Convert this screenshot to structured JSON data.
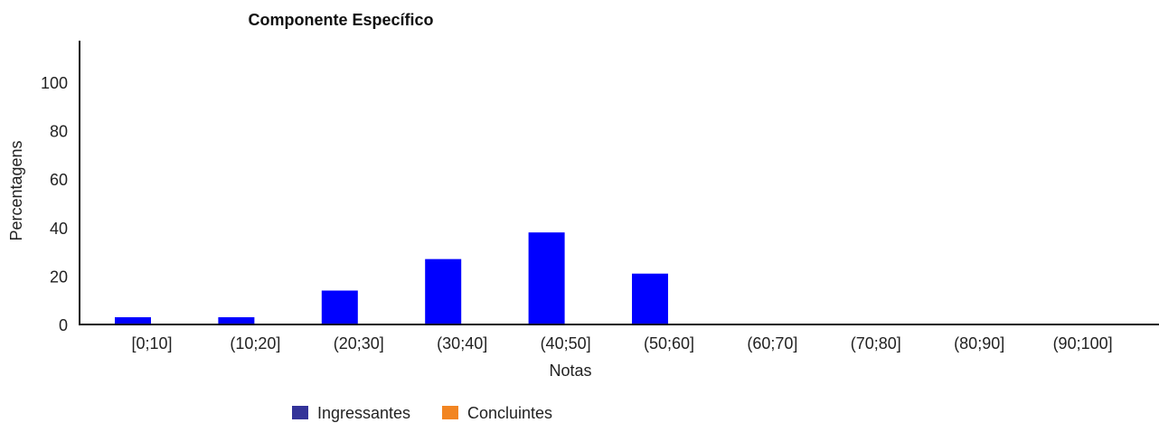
{
  "chart_data": {
    "type": "bar",
    "title": "Componente Específico",
    "xlabel": "Notas",
    "ylabel": "Percentagens",
    "categories": [
      "[0;10]",
      "(10;20]",
      "(20;30]",
      "(30;40]",
      "(40;50]",
      "(50;60]",
      "(60;70]",
      "(70;80]",
      "(80;90]",
      "(90;100]"
    ],
    "series": [
      {
        "name": "Ingressantes",
        "values": [
          3,
          3,
          14,
          27,
          38,
          21,
          0,
          0,
          0,
          0
        ],
        "color": "#0000ff",
        "legend_color": "#333399"
      },
      {
        "name": "Concluintes",
        "values": [
          0,
          0,
          0,
          0,
          0,
          0,
          0,
          0,
          0,
          0
        ],
        "color": "#f28522",
        "legend_color": "#f28522"
      }
    ],
    "yticks": [
      0,
      20,
      40,
      60,
      80,
      100
    ],
    "ylim": [
      0,
      115
    ],
    "grid": false,
    "legend_position": "bottom-center"
  }
}
